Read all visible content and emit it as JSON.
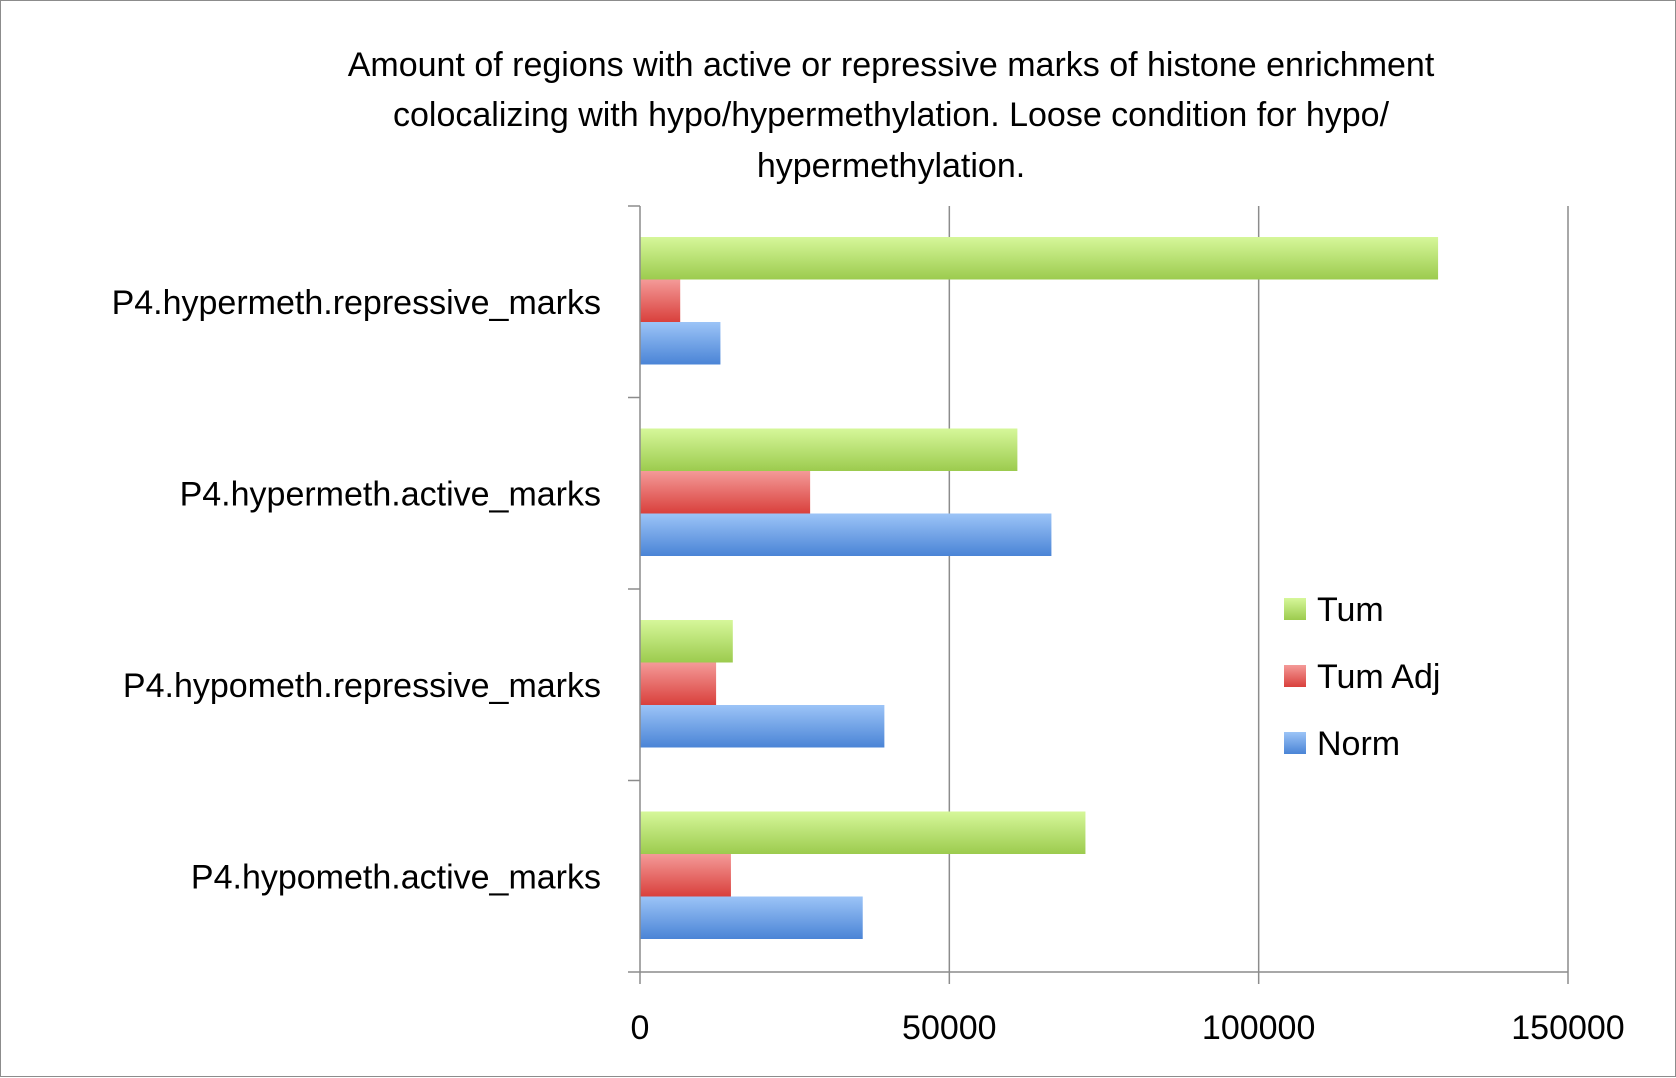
{
  "chart_data": {
    "type": "bar",
    "orientation": "horizontal",
    "title_lines": [
      "Amount of regions with active or repressive marks of histone enrichment",
      "colocalizing with hypo/hypermethylation. Loose condition for hypo/",
      "hypermethylation."
    ],
    "categories": [
      "P4.hypermeth.repressive_marks",
      "P4.hypermeth.active_marks",
      "P4.hypometh.repressive_marks",
      "P4.hypometh.active_marks"
    ],
    "series": [
      {
        "name": "Tum",
        "values": [
          129000,
          61000,
          15000,
          72000
        ]
      },
      {
        "name": "Tum Adj",
        "values": [
          6500,
          27500,
          12300,
          14700
        ]
      },
      {
        "name": "Norm",
        "values": [
          13000,
          66500,
          39500,
          36000
        ]
      }
    ],
    "xlim": [
      0,
      150000
    ],
    "x_ticks": [
      "0",
      "50000",
      "100000",
      "150000"
    ],
    "grid": "vertical",
    "legend_position": "right",
    "colors": {
      "Tum": [
        "#d6f79a",
        "#9ccb4e"
      ],
      "Tum Adj": [
        "#f49a98",
        "#d9403c"
      ],
      "Norm": [
        "#9cc4f7",
        "#4a84d6"
      ],
      "grid": "#8c8c8c",
      "axis": "#8c8c8c"
    }
  }
}
